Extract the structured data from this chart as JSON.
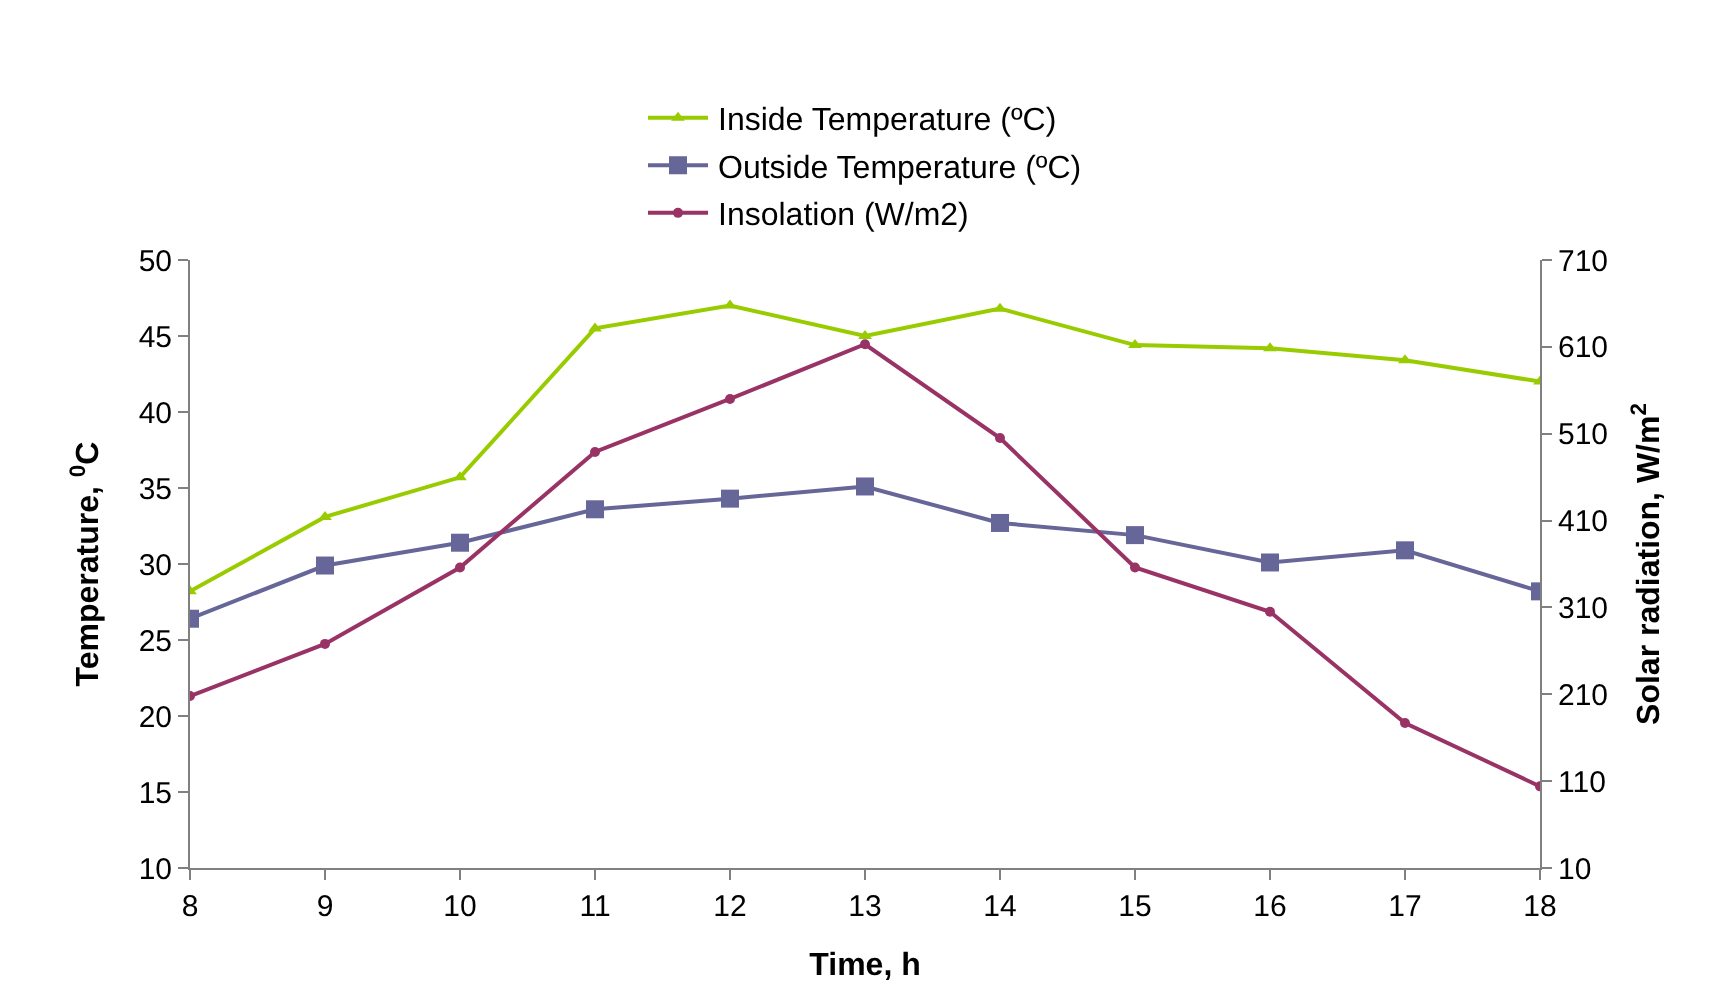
{
  "chart_data": {
    "type": "line",
    "xlabel": "Time, h",
    "ylabel": "Temperature, $^{0}$C",
    "y2label": "Solar radiation, W/m$^{2}$",
    "x": [
      8,
      9,
      10,
      11,
      12,
      13,
      14,
      15,
      16,
      17,
      18
    ],
    "series": [
      {
        "name": "Inside Temperature (ºC)",
        "color": "#99cc00",
        "marker": "triangle",
        "values": [
          28.2,
          33.1,
          35.7,
          45.5,
          47.0,
          45.0,
          46.8,
          44.4,
          44.2,
          43.4,
          42.0
        ]
      },
      {
        "name": "Outside Temperature (ºC)",
        "color": "#666699",
        "marker": "square",
        "values": [
          26.4,
          29.9,
          31.4,
          33.6,
          34.3,
          35.1,
          32.7,
          31.9,
          30.1,
          30.9,
          28.2
        ]
      },
      {
        "name": "Insolation (W/m2)",
        "color": "#993366",
        "marker": "circle",
        "axis": "y2",
        "values": [
          208,
          268,
          356,
          489,
          550,
          613,
          505,
          356,
          305,
          177,
          104
        ]
      }
    ],
    "xlim": [
      8,
      18
    ],
    "xticks": [
      8,
      9,
      10,
      11,
      12,
      13,
      14,
      15,
      16,
      17,
      18
    ],
    "ylim": [
      10,
      50
    ],
    "yticks": [
      10,
      15,
      20,
      25,
      30,
      35,
      40,
      45,
      50
    ],
    "y2lim": [
      10,
      710
    ],
    "y2ticks": [
      10,
      110,
      210,
      310,
      410,
      510,
      610,
      710
    ],
    "legend": "top",
    "line_style": "solid"
  }
}
